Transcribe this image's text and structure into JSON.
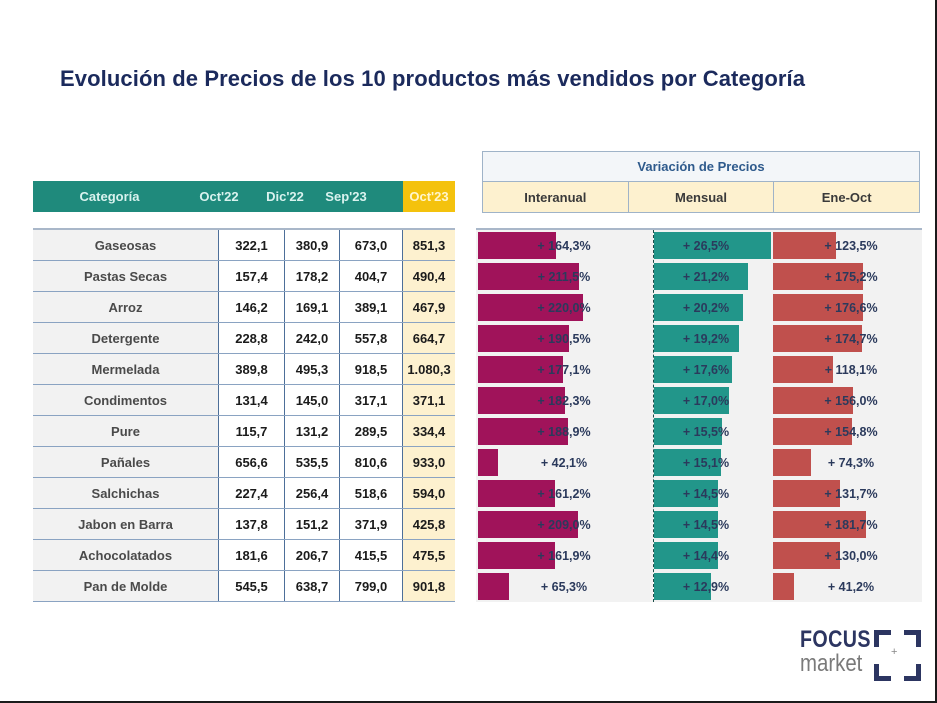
{
  "title": "Evolución de Precios de los 10 productos más vendidos por Categoría",
  "colors": {
    "teal_header": "#1f8a7c",
    "gold_header": "#f4c20d",
    "interanual_bar": "#a0135a",
    "mensual_bar": "#22968a",
    "ene_oct_bar": "#c0504d",
    "title_color": "#1b2a5c"
  },
  "price_table": {
    "headers": [
      "Categoría",
      "Oct'22",
      "Dic'22",
      "Sep'23",
      "Oct'23"
    ],
    "rows": [
      {
        "categoria": "Gaseosas",
        "oct22": "322,1",
        "dic22": "380,9",
        "sep23": "673,0",
        "oct23": "851,3"
      },
      {
        "categoria": "Pastas Secas",
        "oct22": "157,4",
        "dic22": "178,2",
        "sep23": "404,7",
        "oct23": "490,4"
      },
      {
        "categoria": "Arroz",
        "oct22": "146,2",
        "dic22": "169,1",
        "sep23": "389,1",
        "oct23": "467,9"
      },
      {
        "categoria": "Detergente",
        "oct22": "228,8",
        "dic22": "242,0",
        "sep23": "557,8",
        "oct23": "664,7"
      },
      {
        "categoria": "Mermelada",
        "oct22": "389,8",
        "dic22": "495,3",
        "sep23": "918,5",
        "oct23": "1.080,3"
      },
      {
        "categoria": "Condimentos",
        "oct22": "131,4",
        "dic22": "145,0",
        "sep23": "317,1",
        "oct23": "371,1"
      },
      {
        "categoria": "Pure",
        "oct22": "115,7",
        "dic22": "131,2",
        "sep23": "289,5",
        "oct23": "334,4"
      },
      {
        "categoria": "Pañales",
        "oct22": "656,6",
        "dic22": "535,5",
        "sep23": "810,6",
        "oct23": "933,0"
      },
      {
        "categoria": "Salchichas",
        "oct22": "227,4",
        "dic22": "256,4",
        "sep23": "518,6",
        "oct23": "594,0"
      },
      {
        "categoria": "Jabon en Barra",
        "oct22": "137,8",
        "dic22": "151,2",
        "sep23": "371,9",
        "oct23": "425,8"
      },
      {
        "categoria": "Achocolatados",
        "oct22": "181,6",
        "dic22": "206,7",
        "sep23": "415,5",
        "oct23": "475,5"
      },
      {
        "categoria": "Pan de Molde",
        "oct22": "545,5",
        "dic22": "638,7",
        "sep23": "799,0",
        "oct23": "901,8"
      }
    ]
  },
  "variation": {
    "title": "Variación de Precios",
    "headers": [
      "Interanual",
      "Mensual",
      "Ene-Oct"
    ]
  },
  "chart_data": {
    "type": "bar",
    "title": "Variación de Precios",
    "categories": [
      "Gaseosas",
      "Pastas Secas",
      "Arroz",
      "Detergente",
      "Mermelada",
      "Condimentos",
      "Pure",
      "Pañales",
      "Salchichas",
      "Jabon en Barra",
      "Achocolatados",
      "Pan de Molde"
    ],
    "series": [
      {
        "name": "Interanual",
        "values": [
          164.3,
          211.5,
          220.0,
          190.5,
          177.1,
          182.3,
          188.9,
          42.1,
          161.2,
          209.0,
          161.9,
          65.3
        ],
        "labels": [
          "+ 164,3%",
          "+ 211,5%",
          "+ 220,0%",
          "+ 190,5%",
          "+ 177,1%",
          "+ 182,3%",
          "+ 188,9%",
          "+ 42,1%",
          "+ 161,2%",
          "+ 209,0%",
          "+ 161,9%",
          "+ 65,3%"
        ]
      },
      {
        "name": "Mensual",
        "values": [
          26.5,
          21.2,
          20.2,
          19.2,
          17.6,
          17.0,
          15.5,
          15.1,
          14.5,
          14.5,
          14.4,
          12.9
        ],
        "labels": [
          "+ 26,5%",
          "+ 21,2%",
          "+ 20,2%",
          "+ 19,2%",
          "+ 17,6%",
          "+ 17,0%",
          "+ 15,5%",
          "+ 15,1%",
          "+ 14,5%",
          "+ 14,5%",
          "+ 14,4%",
          "+ 12,9%"
        ]
      },
      {
        "name": "Ene-Oct",
        "values": [
          123.5,
          175.2,
          176.6,
          174.7,
          118.1,
          156.0,
          154.8,
          74.3,
          131.7,
          181.7,
          130.0,
          41.2
        ],
        "labels": [
          "+ 123,5%",
          "+ 175,2%",
          "+ 176,6%",
          "+ 174,7%",
          "+ 118,1%",
          "+ 156,0%",
          "+ 154,8%",
          "+ 74,3%",
          "+ 131,7%",
          "+ 181,7%",
          "+ 130,0%",
          "+ 41,2%"
        ]
      }
    ],
    "xlabel": "",
    "ylabel": "",
    "orientation": "horizontal",
    "grid": false,
    "legend": "none"
  },
  "logo": {
    "line1": "FOCUS",
    "line2": "market",
    "plus": "+"
  }
}
